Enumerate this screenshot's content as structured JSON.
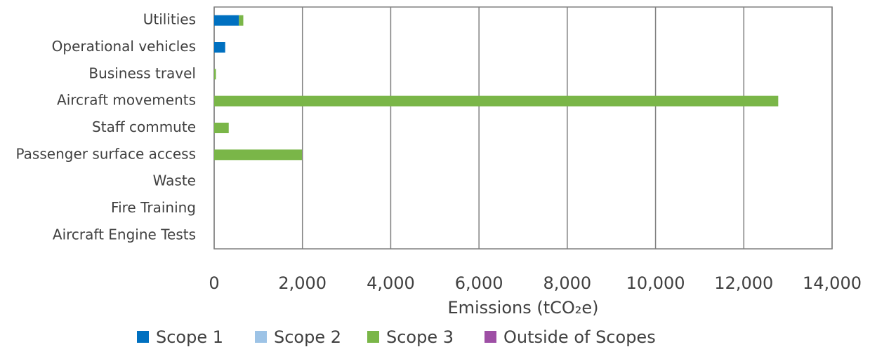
{
  "chart_data": {
    "type": "hbar_stacked",
    "xlabel": "Emissions (tCO₂e)",
    "categories": [
      "Utilities",
      "Operational vehicles",
      "Business travel",
      "Aircraft movements",
      "Staff commute",
      "Passenger surface access",
      "Waste",
      "Fire Training",
      "Aircraft Engine Tests"
    ],
    "series": [
      {
        "name": "Scope 1",
        "color": "#0070c0",
        "values": [
          560,
          250,
          0,
          0,
          0,
          0,
          0,
          0,
          0
        ]
      },
      {
        "name": "Scope 2",
        "color": "#9dc3e6",
        "values": [
          0,
          0,
          0,
          0,
          0,
          0,
          0,
          0,
          0
        ]
      },
      {
        "name": "Scope 3",
        "color": "#7ab648",
        "values": [
          100,
          0,
          40,
          12780,
          330,
          1990,
          0,
          0,
          0
        ]
      },
      {
        "name": "Outside of Scopes",
        "color": "#9e4fa5",
        "values": [
          0,
          0,
          0,
          0,
          0,
          0,
          0,
          0,
          0
        ]
      }
    ],
    "xlim": [
      0,
      14000
    ],
    "xticks": [
      0,
      {
        "value": 2000,
        "label": "2,000"
      },
      {
        "value": 4000,
        "label": "4,000"
      },
      {
        "value": 6000,
        "label": "6,000"
      },
      {
        "value": 8000,
        "label": "8,000"
      },
      {
        "value": 10000,
        "label": "10,000"
      },
      {
        "value": 12000,
        "label": "12,000"
      },
      {
        "value": 14000,
        "label": "14,000"
      }
    ],
    "grid": true,
    "legend": "bottom"
  }
}
